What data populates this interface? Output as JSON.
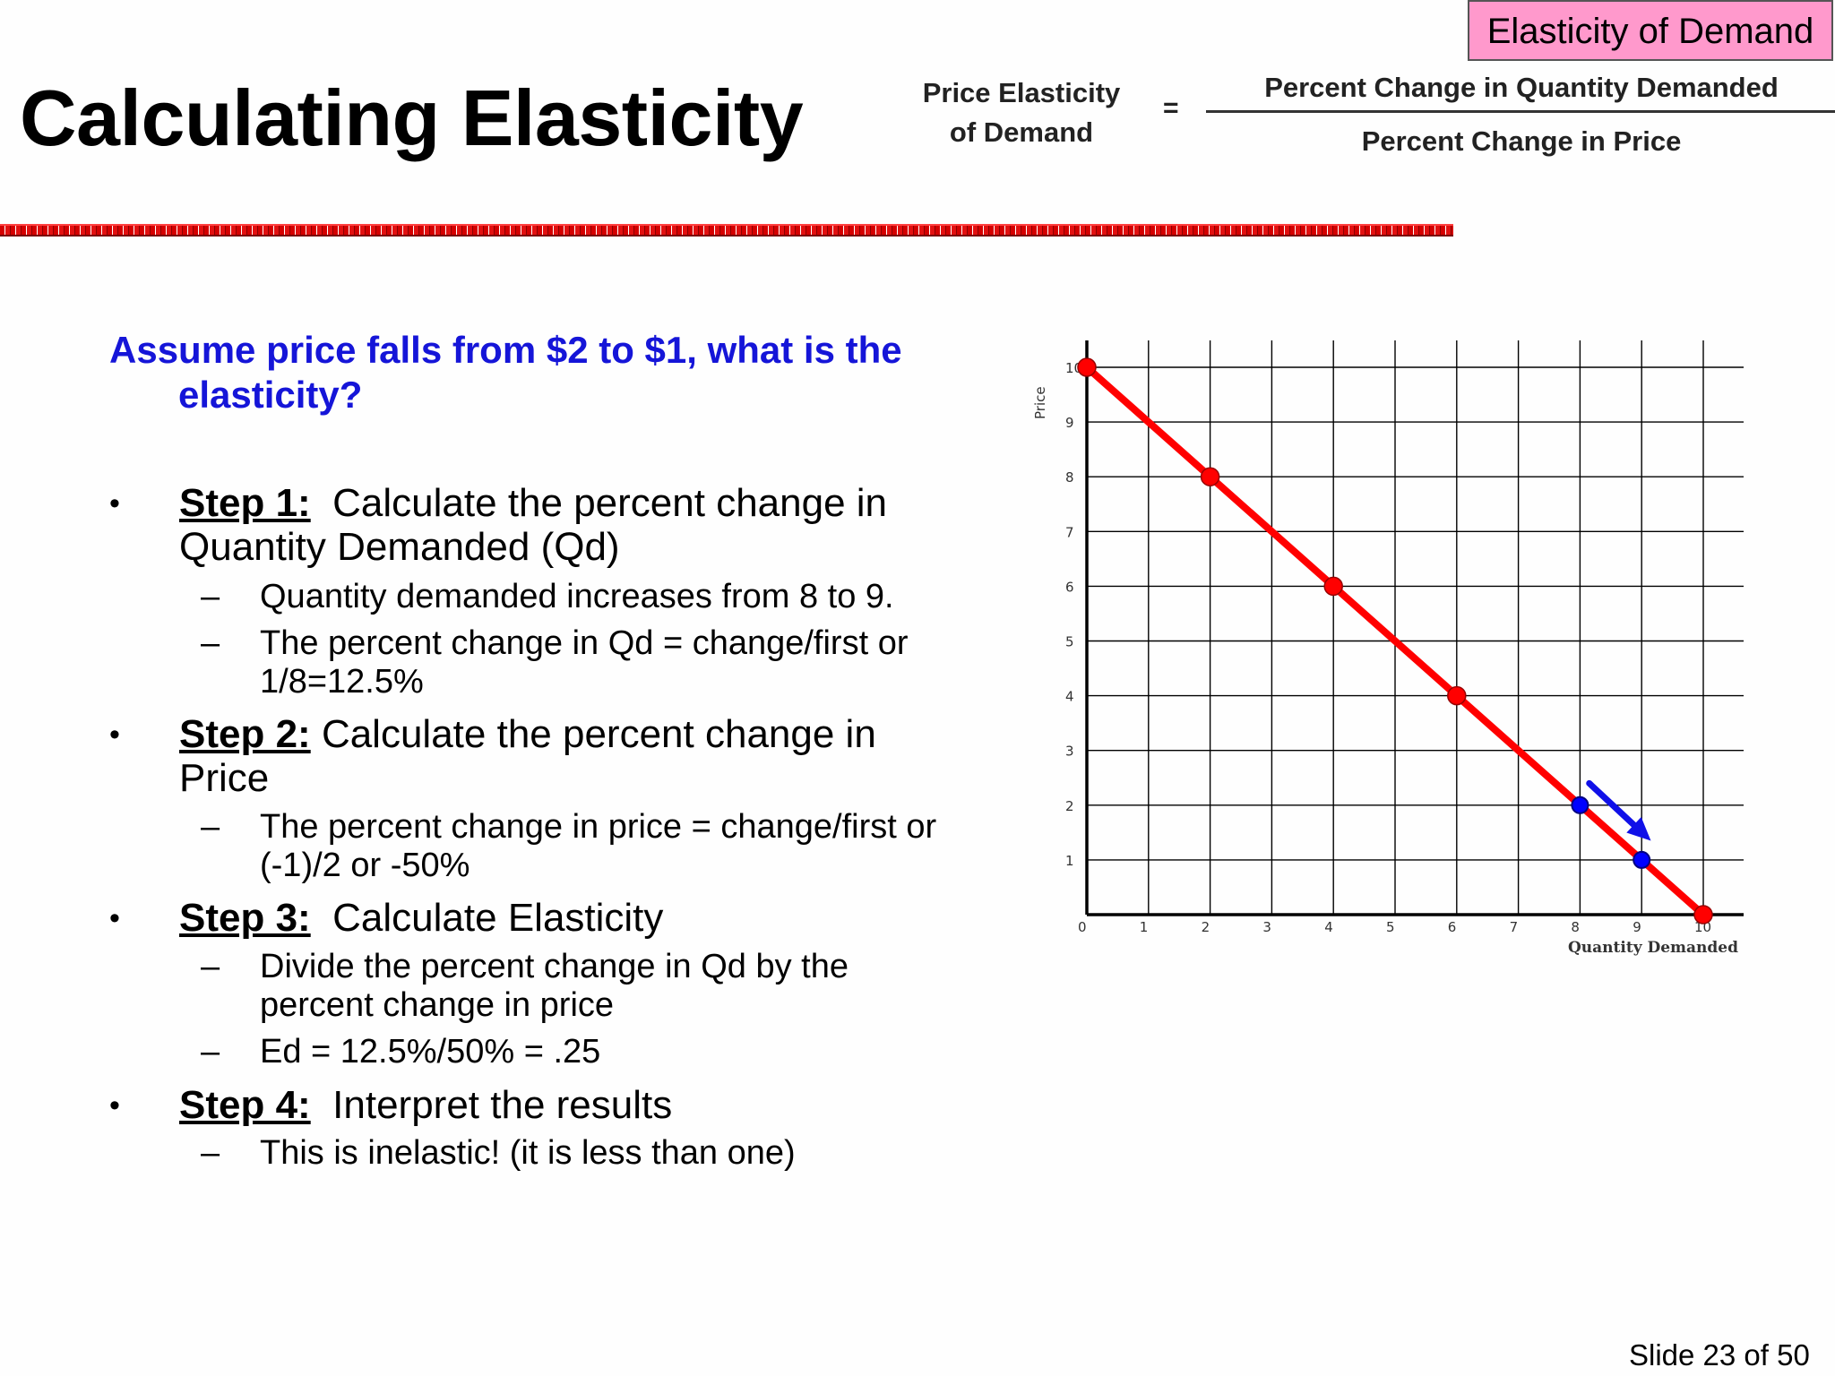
{
  "header": {
    "tag": "Elasticity of Demand",
    "title": "Calculating Elasticity",
    "formula": {
      "lhs_line1": "Price Elasticity",
      "lhs_line2": "of Demand",
      "equals": "=",
      "numerator": "Percent Change in Quantity Demanded",
      "denominator": "Percent Change in Price"
    }
  },
  "question": "Assume price falls from $2 to $1, what is the elasticity?",
  "steps": [
    {
      "label": "Step 1:",
      "text": "Calculate the percent change in Quantity Demanded (Qd)",
      "subs": [
        "Quantity demanded increases from 8 to 9.",
        "The percent change in Qd = change/first or 1/8=12.5%"
      ]
    },
    {
      "label": "Step 2:",
      "text": "Calculate the percent change in Price",
      "subs": [
        "The percent change in price = change/first or (-1)/2 or -50%"
      ]
    },
    {
      "label": "Step 3:",
      "text": "Calculate Elasticity",
      "subs": [
        "Divide the percent change in Qd by the percent change in price",
        "Ed = 12.5%/50% = .25"
      ]
    },
    {
      "label": "Step 4:",
      "text": "Interpret the results",
      "subs": [
        "This is inelastic! (it is less than one)"
      ]
    }
  ],
  "bullet_glyph": "•",
  "dash_glyph": "–",
  "chart_data": {
    "type": "line",
    "xlabel": "Quantity Demanded",
    "ylabel": "Price",
    "xlim": [
      0,
      10
    ],
    "ylim": [
      0,
      10
    ],
    "x_ticks": [
      "0",
      "1",
      "2",
      "3",
      "4",
      "5",
      "6",
      "7",
      "8",
      "9",
      "10"
    ],
    "y_ticks": [
      "1",
      "2",
      "3",
      "4",
      "5",
      "6",
      "7",
      "8",
      "9",
      "10"
    ],
    "grid": true,
    "line": {
      "x": [
        0,
        10
      ],
      "y": [
        10,
        0
      ],
      "color": "#ff0000"
    },
    "red_points": {
      "x": [
        0,
        2,
        4,
        6,
        10
      ],
      "y": [
        10,
        8,
        6,
        4,
        0
      ],
      "color": "#ff0000"
    },
    "blue_points": {
      "x": [
        8,
        9
      ],
      "y": [
        2,
        1
      ],
      "color": "#0000ff"
    },
    "arrow": {
      "from": [
        8.15,
        2.4
      ],
      "to": [
        9.15,
        1.35
      ],
      "color": "#1010e8"
    }
  },
  "footer": {
    "slide_number": "Slide 23 of 50"
  }
}
